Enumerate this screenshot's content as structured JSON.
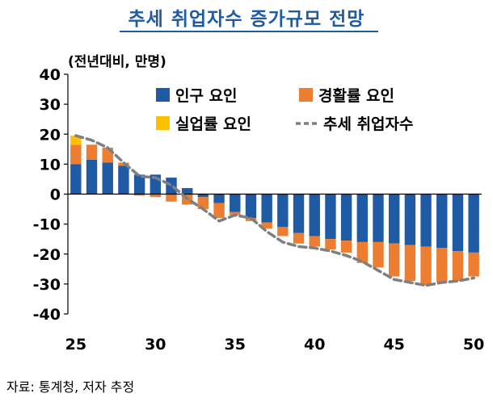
{
  "title": "추세 취업자수 증가규모 전망",
  "source": "자료: 통계청, 저자 추정",
  "chart_data": {
    "type": "bar",
    "unit_label": "(전년대비, 만명)",
    "x": [
      25,
      26,
      27,
      28,
      29,
      30,
      31,
      32,
      33,
      34,
      35,
      36,
      37,
      38,
      39,
      40,
      41,
      42,
      43,
      44,
      45,
      46,
      47,
      48,
      49,
      50
    ],
    "xticks": [
      25,
      30,
      35,
      40,
      45,
      50
    ],
    "ylim": [
      -40,
      40
    ],
    "yticks": [
      40,
      30,
      20,
      10,
      0,
      -10,
      -20,
      -30,
      -40
    ],
    "grid": false,
    "legend_position": "top",
    "series": [
      {
        "name": "인구 요인",
        "kind": "bar",
        "color": "#1f5aa5",
        "values": [
          10,
          11.5,
          10.5,
          9.5,
          6.5,
          6.5,
          5.5,
          2,
          -1,
          -3,
          -6,
          -8,
          -9.5,
          -11,
          -13,
          -14,
          -15,
          -15.5,
          -16,
          -16,
          -16.5,
          -17,
          -17.5,
          -18,
          -19,
          -19.5
        ]
      },
      {
        "name": "경활률 요인",
        "kind": "bar",
        "color": "#ed7d31",
        "values": [
          6.5,
          5,
          5,
          1,
          -0.5,
          -1,
          -2.5,
          -3.5,
          -4,
          -5,
          -1,
          -1,
          -2,
          -3,
          -3.5,
          -3.5,
          -3.5,
          -4,
          -7,
          -8.5,
          -11,
          -12,
          -13,
          -11.5,
          -10,
          -8
        ]
      },
      {
        "name": "실업률 요인",
        "kind": "bar",
        "color": "#ffc000",
        "values": [
          3,
          0,
          0,
          0,
          0,
          0,
          0,
          0,
          0,
          0,
          0,
          0,
          0,
          0,
          0,
          0,
          0,
          0,
          0,
          0,
          0,
          0,
          0,
          0,
          0,
          0
        ]
      },
      {
        "name": "추세 취업자수",
        "kind": "line",
        "color": "#7f7f7f",
        "values": [
          19.5,
          18,
          15.5,
          10.5,
          6,
          5.5,
          3,
          -1.5,
          -5,
          -9,
          -7,
          -8,
          -12.5,
          -16,
          -17.5,
          -18,
          -19,
          -20.5,
          -22.5,
          -25.5,
          -28.5,
          -29.5,
          -30.5,
          -29.5,
          -29,
          -28
        ]
      }
    ]
  }
}
